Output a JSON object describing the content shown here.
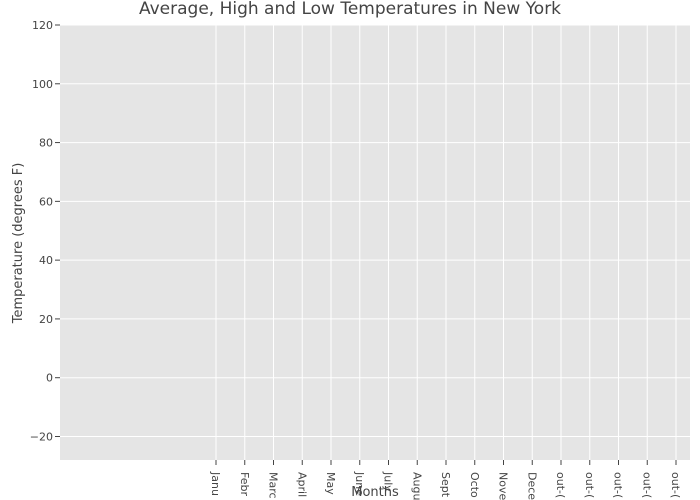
{
  "chart_data": {
    "type": "line",
    "title": "Average, High and Low Temperatures in New York",
    "xlabel": "Months",
    "ylabel": "Temperature (degrees F)",
    "categories": [
      "Janu",
      "Febr",
      "Marc",
      "April",
      "May",
      "June",
      "July",
      "Augu",
      "Sept",
      "Octo",
      "Nove",
      "Dece",
      "out-(",
      "out-(",
      "out-(",
      "out-(",
      "out-("
    ],
    "ylim": [
      -28,
      120
    ],
    "yticks": [
      -20,
      0,
      20,
      40,
      60,
      80,
      100,
      120
    ],
    "ytick_labels": [
      "−20",
      "0",
      "20",
      "40",
      "60",
      "80",
      "100",
      "120"
    ],
    "series": [],
    "grid": true,
    "plot_background": "#e5e5e5",
    "grid_color": "#ffffff"
  }
}
